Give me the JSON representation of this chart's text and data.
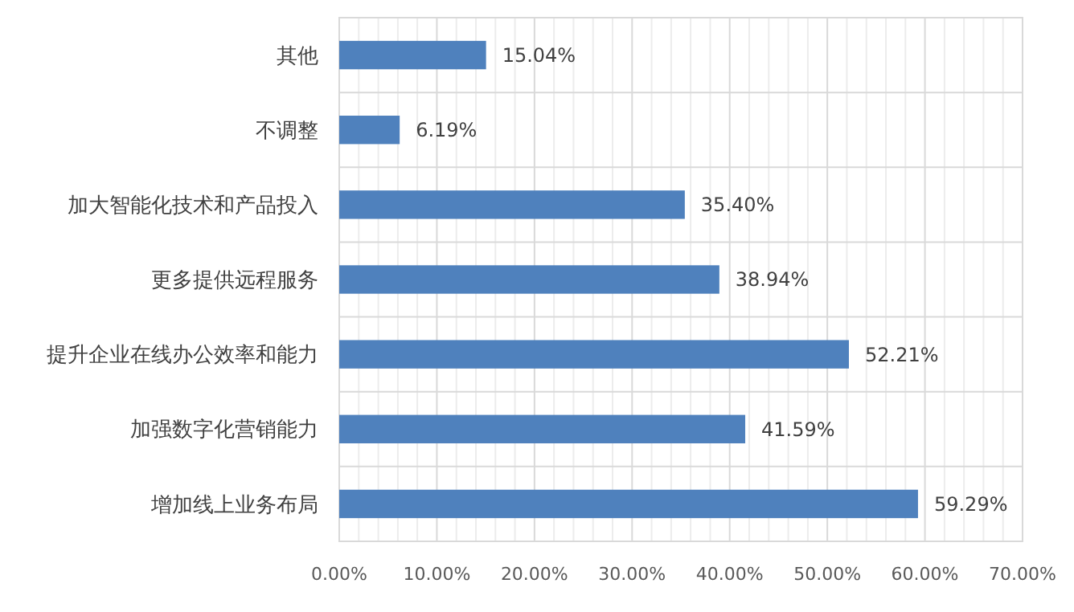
{
  "chart_data": {
    "type": "bar",
    "orientation": "horizontal",
    "categories": [
      "其他",
      "不调整",
      "加大智能化技术和产品投入",
      "更多提供远程服务",
      "提升企业在线办公效率和能力",
      "加强数字化营销能力",
      "增加线上业务布局"
    ],
    "values": [
      15.04,
      6.19,
      35.4,
      38.94,
      52.21,
      41.59,
      59.29
    ],
    "value_labels": [
      "15.04%",
      "6.19%",
      "35.40%",
      "38.94%",
      "52.21%",
      "41.59%",
      "59.29%"
    ],
    "color": "#4f81bd",
    "xlim": [
      0,
      70
    ],
    "xticks": [
      {
        "value": 0,
        "label": "0.00%"
      },
      {
        "value": 2,
        "label": null
      },
      {
        "value": 4,
        "label": null
      },
      {
        "value": 6,
        "label": null
      },
      {
        "value": 8,
        "label": null
      },
      {
        "value": 10,
        "label": "10.00%"
      },
      {
        "value": 12,
        "label": null
      },
      {
        "value": 14,
        "label": null
      },
      {
        "value": 16,
        "label": null
      },
      {
        "value": 18,
        "label": null
      },
      {
        "value": 20,
        "label": "20.00%"
      },
      {
        "value": 22,
        "label": null
      },
      {
        "value": 24,
        "label": null
      },
      {
        "value": 26,
        "label": null
      },
      {
        "value": 28,
        "label": null
      },
      {
        "value": 30,
        "label": "30.00%"
      },
      {
        "value": 32,
        "label": null
      },
      {
        "value": 34,
        "label": null
      },
      {
        "value": 36,
        "label": null
      },
      {
        "value": 38,
        "label": null
      },
      {
        "value": 40,
        "label": "40.00%"
      },
      {
        "value": 42,
        "label": null
      },
      {
        "value": 44,
        "label": null
      },
      {
        "value": 46,
        "label": null
      },
      {
        "value": 48,
        "label": null
      },
      {
        "value": 50,
        "label": "50.00%"
      },
      {
        "value": 52,
        "label": null
      },
      {
        "value": 54,
        "label": null
      },
      {
        "value": 56,
        "label": null
      },
      {
        "value": 58,
        "label": null
      },
      {
        "value": 60,
        "label": "60.00%"
      },
      {
        "value": 62,
        "label": null
      },
      {
        "value": 64,
        "label": null
      },
      {
        "value": 66,
        "label": null
      },
      {
        "value": 68,
        "label": null
      },
      {
        "value": 70,
        "label": "70.00%"
      }
    ],
    "grid": true
  }
}
